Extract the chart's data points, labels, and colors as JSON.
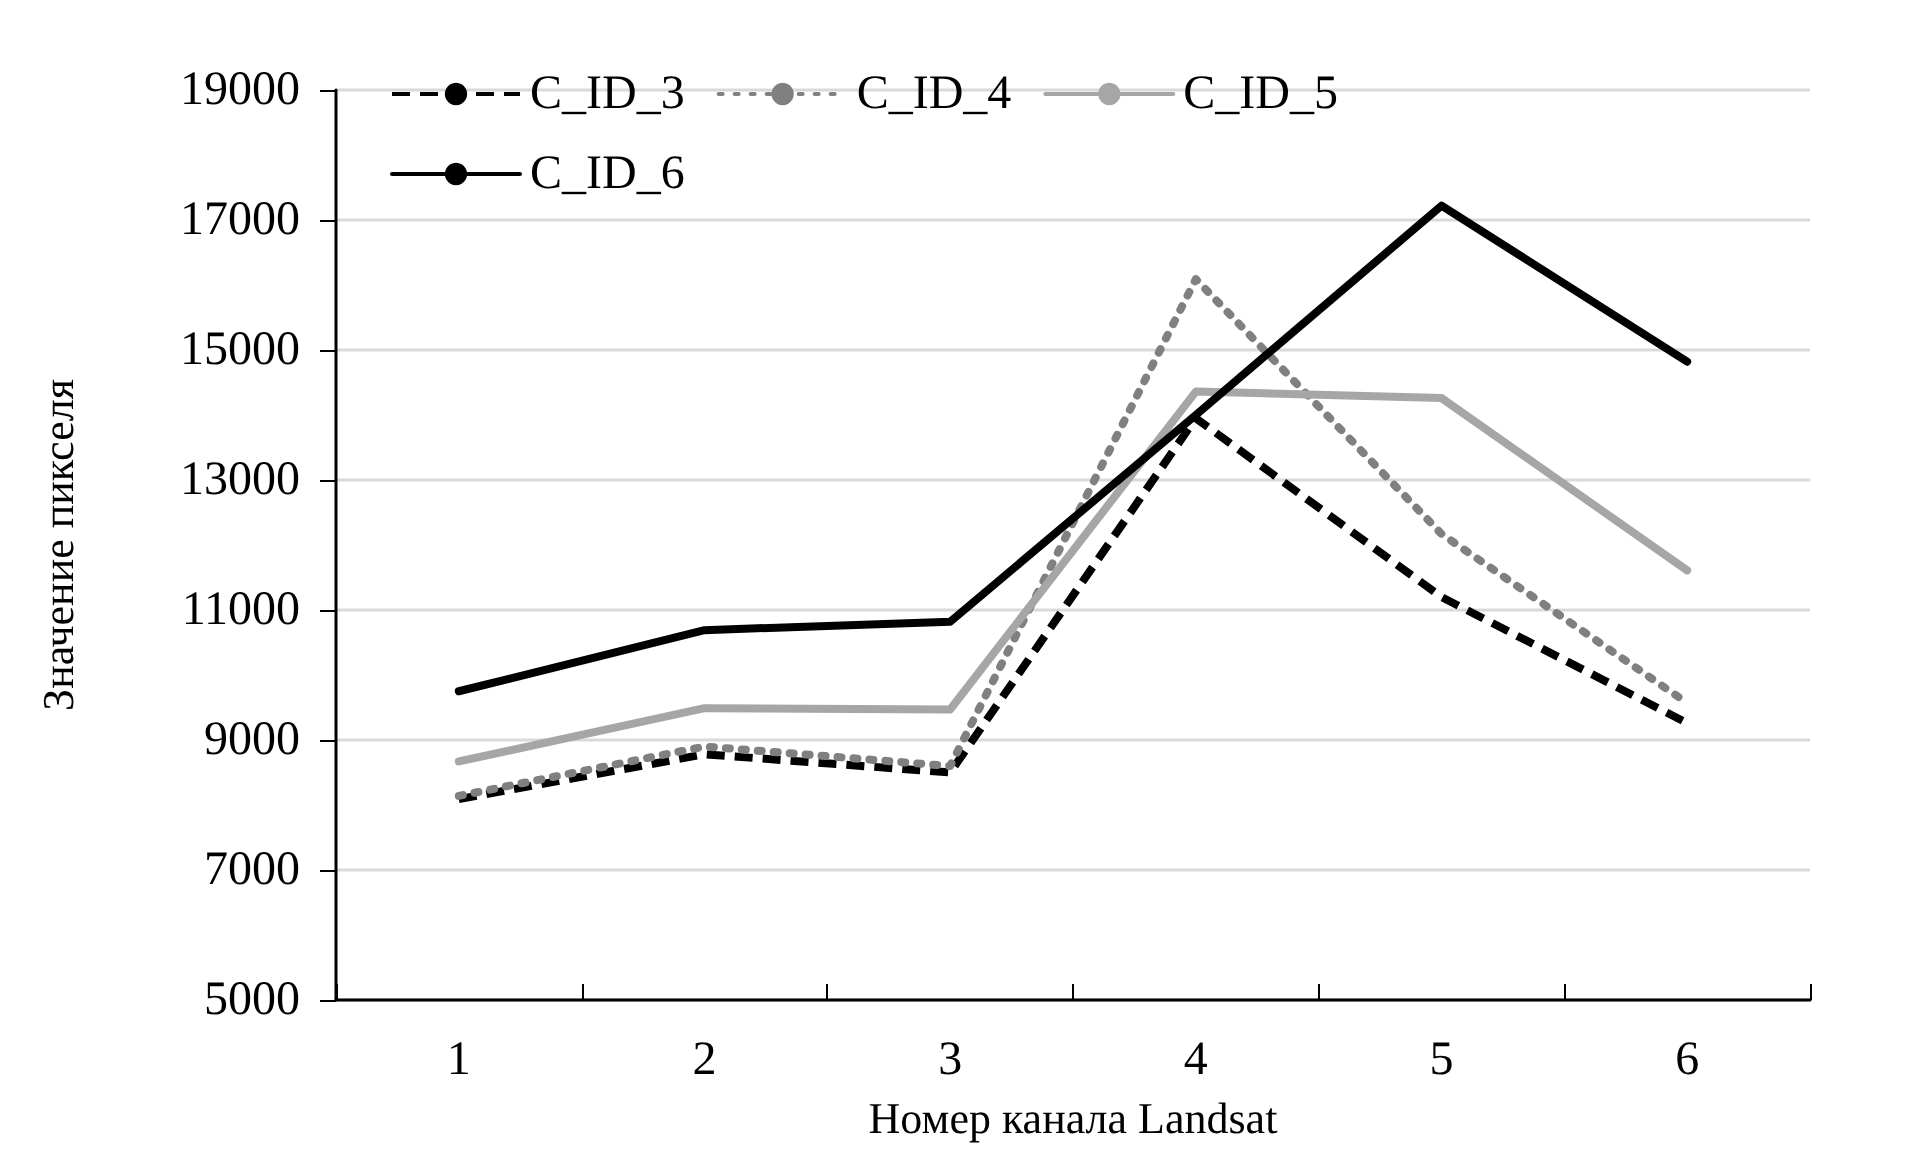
{
  "chart_data": {
    "type": "line",
    "xlabel": "Номер канала Landsat",
    "ylabel": "Значение пикселя",
    "categories": [
      "1",
      "2",
      "3",
      "4",
      "5",
      "6"
    ],
    "series": [
      {
        "name": "C_ID_3",
        "color": "#000000",
        "line_style": "dashed",
        "values": [
          8090,
          8780,
          8500,
          13950,
          11200,
          9260
        ]
      },
      {
        "name": "C_ID_4",
        "color": "#808080",
        "line_style": "dotted",
        "values": [
          8140,
          8900,
          8600,
          16090,
          12170,
          9570
        ]
      },
      {
        "name": "C_ID_5",
        "color": "#a6a6a6",
        "line_style": "solid",
        "values": [
          8670,
          9490,
          9470,
          14360,
          14260,
          11610
        ]
      },
      {
        "name": "C_ID_6",
        "color": "#000000",
        "line_style": "solid",
        "values": [
          9750,
          10690,
          10820,
          14000,
          17220,
          14820
        ]
      }
    ],
    "ylim": [
      5000,
      19000
    ],
    "yticks": [
      5000,
      7000,
      9000,
      11000,
      13000,
      15000,
      17000,
      19000
    ],
    "grid": "y",
    "legend": "top left",
    "marker": "none"
  }
}
